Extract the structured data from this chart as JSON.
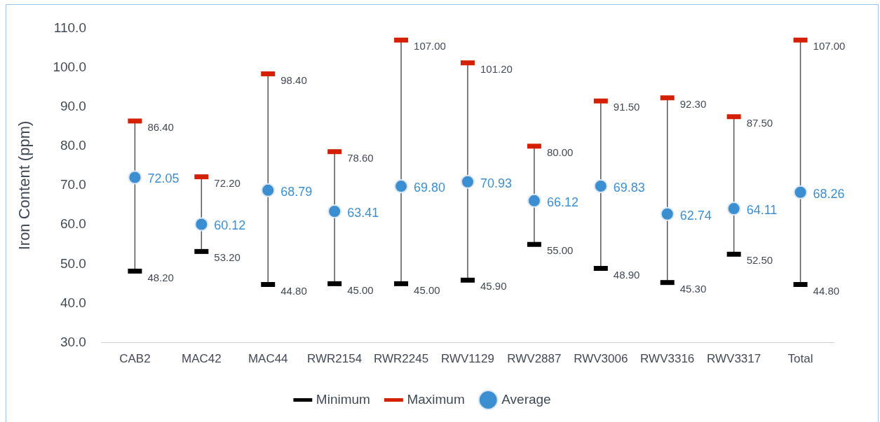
{
  "chart_data": {
    "type": "scatter",
    "ylabel": "Iron Content (ppm)",
    "categories": [
      "CAB2",
      "MAC42",
      "MAC44",
      "RWR2154",
      "RWR2245",
      "RWV1129",
      "RWV2887",
      "RWV3006",
      "RWV3316",
      "RWV3317",
      "Total"
    ],
    "series": [
      {
        "name": "Minimum",
        "color": "#000000",
        "values": [
          48.2,
          53.2,
          44.8,
          45.0,
          45.0,
          45.9,
          55.0,
          48.9,
          45.3,
          52.5,
          44.8
        ],
        "value_labels": [
          "48.20",
          "53.20",
          "44.80",
          "45.00",
          "45.00",
          "45.90",
          "55.00",
          "48.90",
          "45.30",
          "52.50",
          "44.80"
        ]
      },
      {
        "name": "Maximum",
        "color": "#d42000",
        "values": [
          86.4,
          72.2,
          98.4,
          78.6,
          107.0,
          101.2,
          80.0,
          91.5,
          92.3,
          87.5,
          107.0
        ],
        "value_labels": [
          "86.40",
          "72.20",
          "98.40",
          "78.60",
          "107.00",
          "101.20",
          "80.00",
          "91.50",
          "92.30",
          "87.50",
          "107.00"
        ]
      },
      {
        "name": "Average",
        "color": "#3b8fd0",
        "marker": "circle",
        "values": [
          72.05,
          60.12,
          68.79,
          63.41,
          69.8,
          70.93,
          66.12,
          69.83,
          62.74,
          64.11,
          68.26
        ],
        "value_labels": [
          "72.05",
          "60.12",
          "68.79",
          "63.41",
          "69.80",
          "70.93",
          "66.12",
          "69.83",
          "62.74",
          "64.11",
          "68.26"
        ]
      }
    ],
    "ylim": [
      30,
      110
    ],
    "yticks": [
      {
        "value": 30,
        "label": "30.0"
      },
      {
        "value": 40,
        "label": "40.0"
      },
      {
        "value": 50,
        "label": "50.0"
      },
      {
        "value": 60,
        "label": "60.0"
      },
      {
        "value": 70,
        "label": "70.0"
      },
      {
        "value": 80,
        "label": "80.0"
      },
      {
        "value": 90,
        "label": "90.0"
      },
      {
        "value": 100,
        "label": "100.0"
      },
      {
        "value": 110,
        "label": "110.0"
      }
    ],
    "legend": "bottom"
  }
}
